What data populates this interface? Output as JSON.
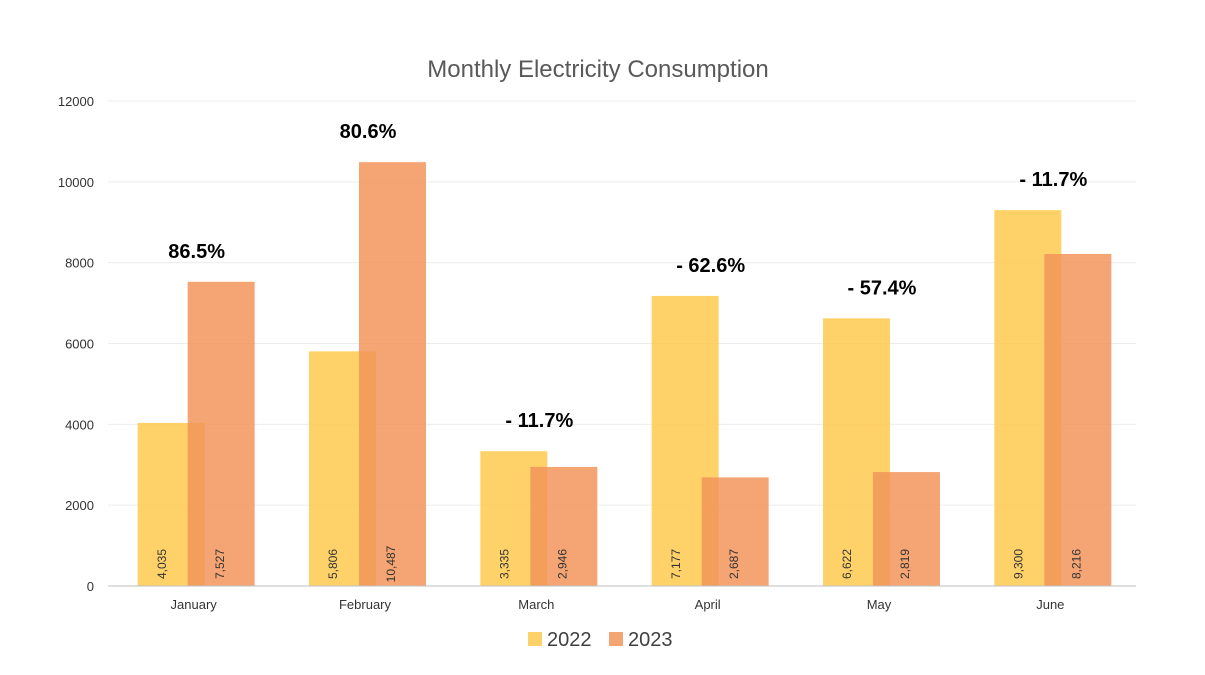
{
  "chart_data": {
    "type": "bar",
    "title": "Monthly Electricity Consumption",
    "xlabel": "",
    "ylabel": "",
    "ylim": [
      0,
      12000
    ],
    "yticks": [
      0,
      2000,
      4000,
      6000,
      8000,
      10000,
      12000
    ],
    "grid": true,
    "legend_position": "bottom",
    "categories": [
      "January",
      "February",
      "March",
      "April",
      "May",
      "June"
    ],
    "series": [
      {
        "name": "2022",
        "color": "#FFCA4F",
        "values": [
          4035,
          5806,
          3335,
          7177,
          6622,
          9300
        ],
        "labels": [
          "4,035",
          "5,806",
          "3,335",
          "7,177",
          "6,622",
          "9,300"
        ]
      },
      {
        "name": "2023",
        "color": "#F2955A",
        "values": [
          7527,
          10487,
          2946,
          2687,
          2819,
          8216
        ],
        "labels": [
          "7,527",
          "10,487",
          "2,946",
          "2,687",
          "2,819",
          "8,216"
        ]
      }
    ],
    "annotations": [
      "86.5%",
      "80.6%",
      "- 11.7%",
      "- 62.6%",
      "- 57.4%",
      "- 11.7%"
    ]
  }
}
